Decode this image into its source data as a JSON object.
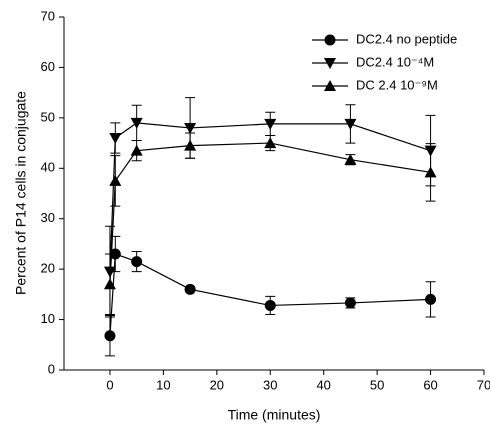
{
  "chart_data": {
    "type": "line",
    "x_label": "Time (minutes)",
    "y_label": "Percent of P14 cells in conjugate",
    "x": [
      0,
      1,
      5,
      15,
      30,
      45,
      60
    ],
    "series": [
      {
        "name": "DC2.4 no peptide",
        "color": "#000000",
        "marker": "circle",
        "values": [
          6.8,
          23,
          21.5,
          16,
          12.8,
          13.3,
          14
        ],
        "errors": [
          4,
          3.5,
          2,
          0.5,
          1.8,
          1,
          3.5
        ]
      },
      {
        "name": "DC2.4 10⁻⁴M",
        "color": "#000000",
        "marker": "triangle-down",
        "values": [
          19.5,
          46,
          49,
          48,
          48.8,
          48.8,
          43.5
        ],
        "errors": [
          9,
          3,
          3.5,
          6,
          2.3,
          3.8,
          7
        ]
      },
      {
        "name": "DC 2.4 10⁻⁹M",
        "color": "#000000",
        "marker": "triangle-up",
        "values": [
          17,
          37.5,
          43.5,
          44.5,
          45,
          41.7,
          39.2
        ],
        "errors": [
          6,
          5,
          2,
          2.5,
          1.5,
          1,
          5.7
        ]
      }
    ],
    "xlim": [
      -8.6,
      70
    ],
    "xticks": [
      0,
      10,
      20,
      30,
      40,
      50,
      60,
      70
    ],
    "ylim": [
      0,
      70
    ],
    "yticks": [
      0,
      10,
      20,
      30,
      40,
      50,
      60,
      70
    ],
    "legend": "upper right",
    "grid": false
  }
}
